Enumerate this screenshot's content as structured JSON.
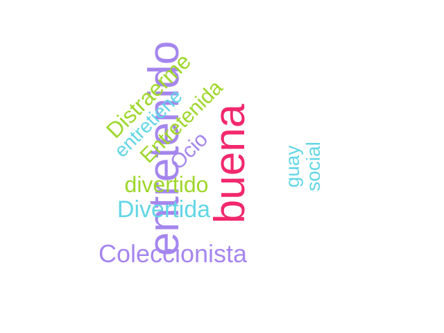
{
  "colors": {
    "purple": "#a586ee",
    "pink": "#f2286d",
    "green": "#9ed72b",
    "cyan": "#62d6e6"
  },
  "words": {
    "entretenido": {
      "text": "entretenido",
      "color": "#a586ee"
    },
    "buena": {
      "text": "buena",
      "color": "#f2286d"
    },
    "guay": {
      "text": "guay",
      "color": "#62d6e6"
    },
    "social": {
      "text": "social",
      "color": "#62d6e6"
    },
    "distraerme": {
      "text": "Distraerme",
      "color": "#9ed72b"
    },
    "entretiene": {
      "text": "entretiene",
      "color": "#62d6e6"
    },
    "entretenida": {
      "text": "Entretenida",
      "color": "#9ed72b"
    },
    "ocio": {
      "text": "Ocio",
      "color": "#a586ee"
    },
    "divertido": {
      "text": "divertido",
      "color": "#9ed72b"
    },
    "divertida": {
      "text": "Divertida",
      "color": "#62d6e6"
    },
    "coleccionista": {
      "text": "Coleccionista",
      "color": "#a586ee"
    }
  }
}
